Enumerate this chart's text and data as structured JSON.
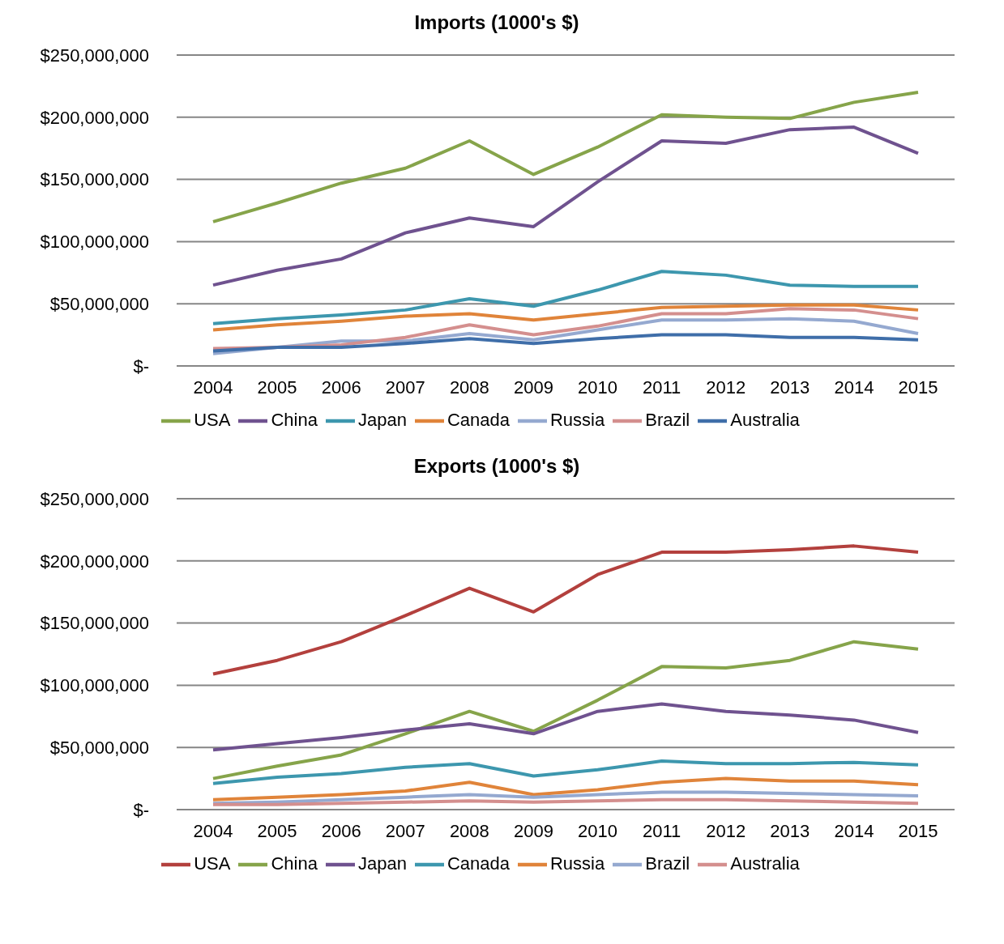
{
  "chart_data": [
    {
      "type": "line",
      "title": "Imports (1000's $)",
      "categories": [
        "2004",
        "2005",
        "2006",
        "2007",
        "2008",
        "2009",
        "2010",
        "2011",
        "2012",
        "2013",
        "2014",
        "2015"
      ],
      "series": [
        {
          "name": "USA",
          "color": "#86a44a",
          "values": [
            116000000,
            131000000,
            147000000,
            159000000,
            181000000,
            154000000,
            176000000,
            202000000,
            200000000,
            199000000,
            212000000,
            220000000
          ]
        },
        {
          "name": "China",
          "color": "#6f528f",
          "values": [
            65000000,
            77000000,
            86000000,
            107000000,
            119000000,
            112000000,
            148000000,
            181000000,
            179000000,
            190000000,
            192000000,
            171000000
          ]
        },
        {
          "name": "Japan",
          "color": "#3d97ae",
          "values": [
            34000000,
            38000000,
            41000000,
            45000000,
            54000000,
            48000000,
            61000000,
            76000000,
            73000000,
            65000000,
            64000000,
            64000000
          ]
        },
        {
          "name": "Canada",
          "color": "#e0843a",
          "values": [
            29000000,
            33000000,
            36000000,
            40000000,
            42000000,
            37000000,
            42000000,
            47000000,
            48000000,
            49000000,
            49000000,
            45000000
          ]
        },
        {
          "name": "Russia",
          "color": "#95a9d0",
          "values": [
            10000000,
            15000000,
            20000000,
            20000000,
            26000000,
            21000000,
            29000000,
            37000000,
            37000000,
            38000000,
            36000000,
            26000000
          ]
        },
        {
          "name": "Brazil",
          "color": "#d48f8e",
          "values": [
            14000000,
            15000000,
            17000000,
            23000000,
            33000000,
            25000000,
            32000000,
            42000000,
            42000000,
            46000000,
            45000000,
            38000000
          ]
        },
        {
          "name": "Australia",
          "color": "#3f6ea9",
          "values": [
            12000000,
            15000000,
            15000000,
            18000000,
            22000000,
            18000000,
            22000000,
            25000000,
            25000000,
            23000000,
            23000000,
            21000000
          ]
        }
      ],
      "ylim": [
        0,
        250000000
      ],
      "yticks": [
        {
          "value": 0,
          "label": "$-"
        },
        {
          "value": 50000000,
          "label": "$50,000,000"
        },
        {
          "value": 100000000,
          "label": "$100,000,000"
        },
        {
          "value": 150000000,
          "label": "$150,000,000"
        },
        {
          "value": 200000000,
          "label": "$200,000,000"
        },
        {
          "value": 250000000,
          "label": "$250,000,000"
        }
      ],
      "grid": "y",
      "legend": "bottom",
      "marker": "none",
      "line_style": "solid"
    },
    {
      "type": "line",
      "title": "Exports (1000's $)",
      "categories": [
        "2004",
        "2005",
        "2006",
        "2007",
        "2008",
        "2009",
        "2010",
        "2011",
        "2012",
        "2013",
        "2014",
        "2015"
      ],
      "series": [
        {
          "name": "USA",
          "color": "#b3403d",
          "values": [
            109000000,
            120000000,
            135000000,
            156000000,
            178000000,
            159000000,
            189000000,
            207000000,
            207000000,
            209000000,
            212000000,
            207000000
          ]
        },
        {
          "name": "China",
          "color": "#86a44a",
          "values": [
            25000000,
            35000000,
            44000000,
            61000000,
            79000000,
            63000000,
            88000000,
            115000000,
            114000000,
            120000000,
            135000000,
            129000000
          ]
        },
        {
          "name": "Japan",
          "color": "#6f528f",
          "values": [
            48000000,
            53000000,
            58000000,
            64000000,
            69000000,
            61000000,
            79000000,
            85000000,
            79000000,
            76000000,
            72000000,
            62000000
          ]
        },
        {
          "name": "Canada",
          "color": "#3d97ae",
          "values": [
            21000000,
            26000000,
            29000000,
            34000000,
            37000000,
            27000000,
            32000000,
            39000000,
            37000000,
            37000000,
            38000000,
            36000000
          ]
        },
        {
          "name": "Russia",
          "color": "#e0843a",
          "values": [
            8000000,
            10000000,
            12000000,
            15000000,
            22000000,
            12000000,
            16000000,
            22000000,
            25000000,
            23000000,
            23000000,
            20000000
          ]
        },
        {
          "name": "Brazil",
          "color": "#95a9d0",
          "values": [
            5000000,
            6000000,
            8000000,
            10000000,
            12000000,
            10000000,
            12000000,
            14000000,
            14000000,
            13000000,
            12000000,
            11000000
          ]
        },
        {
          "name": "Australia",
          "color": "#d48f8e",
          "values": [
            4000000,
            4000000,
            5000000,
            6000000,
            7000000,
            6000000,
            7000000,
            8000000,
            8000000,
            7000000,
            6000000,
            5000000
          ]
        }
      ],
      "ylim": [
        0,
        250000000
      ],
      "yticks": [
        {
          "value": 0,
          "label": "$-"
        },
        {
          "value": 50000000,
          "label": "$50,000,000"
        },
        {
          "value": 100000000,
          "label": "$100,000,000"
        },
        {
          "value": 150000000,
          "label": "$150,000,000"
        },
        {
          "value": 200000000,
          "label": "$200,000,000"
        },
        {
          "value": 250000000,
          "label": "$250,000,000"
        }
      ],
      "grid": "y",
      "legend": "bottom",
      "marker": "none",
      "line_style": "solid"
    }
  ]
}
